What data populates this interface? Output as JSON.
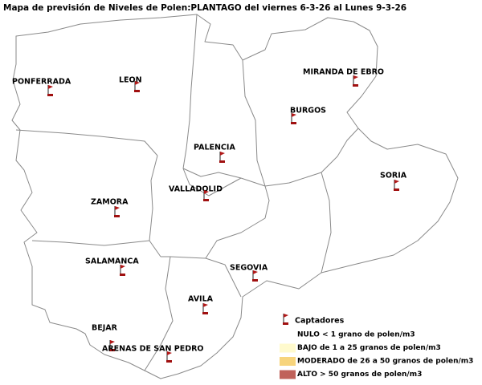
{
  "title": "Mapa de previsión de Niveles de Polen:PLANTAGO  del viernes 6-3-26 al Lunes 9-3-26",
  "stations": [
    "PONFERRADA",
    "LEON",
    "MIRANDA DE EBRO",
    "BURGOS",
    "PALENCIA",
    "SORIA",
    "VALLADOLID",
    "ZAMORA",
    "SALAMANCA",
    "SEGOVIA",
    "AVILA",
    "BEJAR",
    "ARENAS DE SAN PEDRO"
  ],
  "legend": {
    "marker_label": "Captadores",
    "levels": [
      {
        "label": "NULO < 1 grano de polen/m3",
        "color": "#ffffff"
      },
      {
        "label": "BAJO de 1 a 25 granos de polen/m3",
        "color": "#fffacd"
      },
      {
        "label": "MODERADO de 26 a 50 granos de polen/m3",
        "color": "#f7d47c"
      },
      {
        "label": "ALTO > 50 granos de polen/m3",
        "color": "#c0625a"
      }
    ]
  }
}
